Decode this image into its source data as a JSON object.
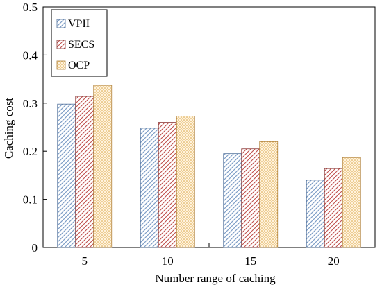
{
  "chart_data": {
    "type": "bar",
    "title": "",
    "xlabel": "Number range of caching",
    "ylabel": "Caching cost",
    "categories": [
      "5",
      "10",
      "15",
      "20"
    ],
    "ylim": [
      0,
      0.5
    ],
    "yticks": [
      "0",
      "0.1",
      "0.2",
      "0.3",
      "0.4",
      "0.5"
    ],
    "grid": false,
    "legend_position": "top-left",
    "series": [
      {
        "name": "VPII",
        "values": [
          0.298,
          0.248,
          0.195,
          0.14
        ],
        "color": "#b9cde5",
        "pattern": "diagonal-hatch"
      },
      {
        "name": "SECS",
        "values": [
          0.314,
          0.26,
          0.205,
          0.164
        ],
        "color": "#e6b9b8",
        "pattern": "diagonal-hatch"
      },
      {
        "name": "OCP",
        "values": [
          0.337,
          0.273,
          0.22,
          0.187
        ],
        "color": "#fcd5a3",
        "pattern": "dots"
      }
    ]
  }
}
